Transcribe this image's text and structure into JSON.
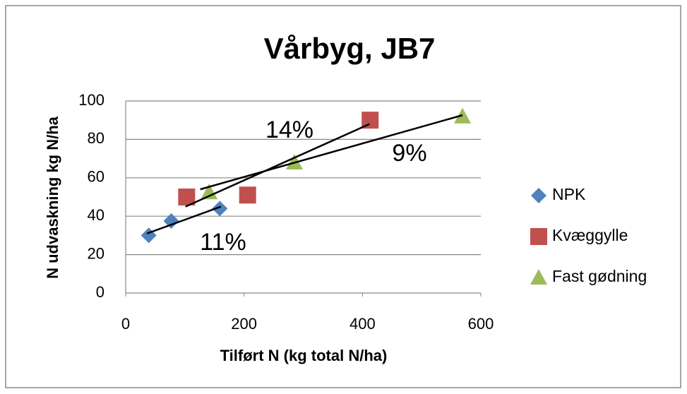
{
  "chart_data": {
    "type": "scatter",
    "title": "Vårbyg, JB7",
    "x_label": "Tilført N (kg total N/ha)",
    "y_label": "N udvaskning kg N/ha",
    "xlim": [
      0,
      600
    ],
    "xticks": [
      0,
      200,
      400,
      600
    ],
    "ylim": [
      0,
      100
    ],
    "yticks": [
      0,
      20,
      40,
      60,
      80,
      100
    ],
    "grid": true,
    "legend": "right",
    "series": [
      {
        "name": "NPK",
        "color": "#4f81bd",
        "marker": "diamond",
        "x": [
          39,
          77,
          159
        ],
        "values": [
          30,
          37.5,
          44
        ],
        "trendline": {
          "x": [
            36,
            161
          ],
          "y": [
            31,
            45
          ]
        }
      },
      {
        "name": "Kvæggylle",
        "color": "#c0504d",
        "marker": "square",
        "x": [
          103,
          206,
          413
        ],
        "values": [
          50,
          51,
          90
        ],
        "trendline": {
          "x": [
            101,
            412
          ],
          "y": [
            45,
            88
          ]
        }
      },
      {
        "name": "Fast gødning",
        "color": "#9bbb59",
        "marker": "triangle",
        "x": [
          141,
          285,
          569
        ],
        "values": [
          52.5,
          68,
          92
        ],
        "trendline": {
          "x": [
            126,
            569
          ],
          "y": [
            54,
            92.6
          ]
        }
      }
    ],
    "annotations": [
      "14%",
      "9%",
      "11%"
    ]
  }
}
